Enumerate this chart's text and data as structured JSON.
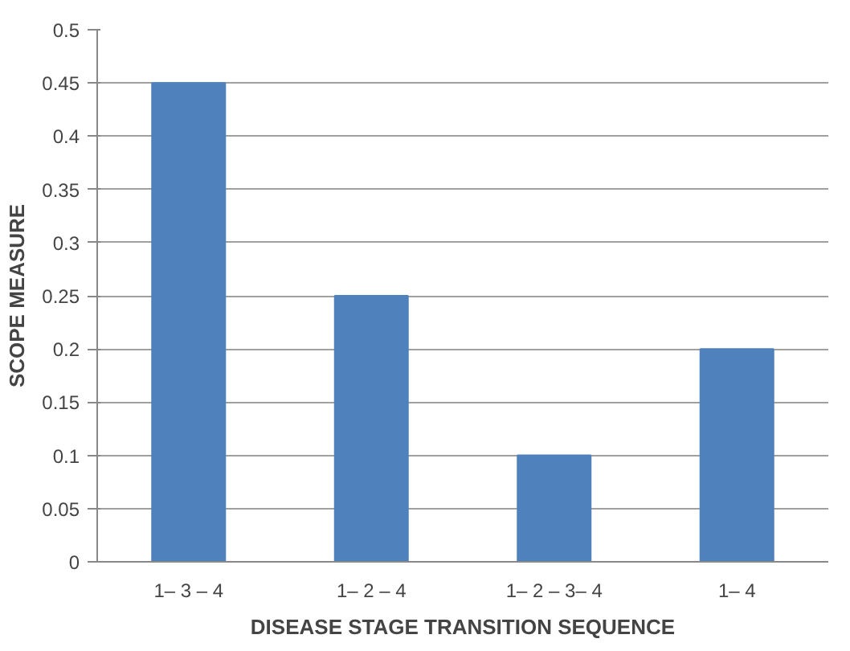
{
  "chart_data": {
    "type": "bar",
    "xlabel": "DISEASE STAGE TRANSITION SEQUENCE",
    "ylabel": "SCOPE MEASURE",
    "categories": [
      "1– 3 – 4",
      "1– 2 – 4",
      "1– 2 – 3– 4",
      "1– 4"
    ],
    "values": [
      0.45,
      0.25,
      0.1,
      0.2
    ],
    "color": "#4f81bd",
    "ylim": [
      0,
      0.5
    ],
    "yticks": [
      0,
      0.05,
      0.1,
      0.15,
      0.2,
      0.25,
      0.3,
      0.35,
      0.4,
      0.45,
      0.5
    ],
    "grid": "y"
  }
}
